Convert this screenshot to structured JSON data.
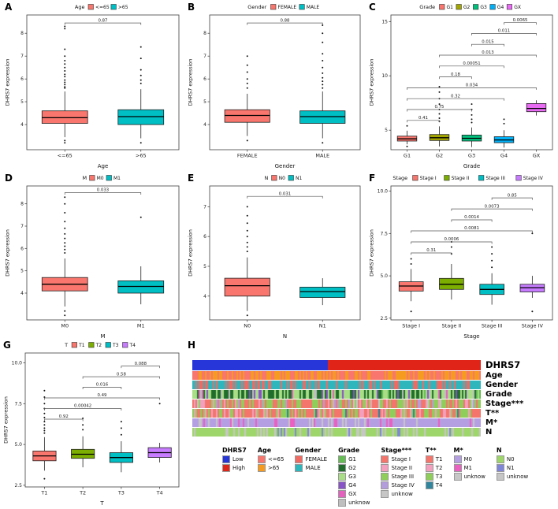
{
  "chart_data": [
    {
      "id": "A",
      "letter": "A",
      "type": "box",
      "legend_title": "Age",
      "xlab": "Age",
      "ylab": "DHRS7 expression",
      "ylim": [
        2.9,
        8.8
      ],
      "yticks": [
        4,
        5,
        6,
        7,
        8
      ],
      "groups": [
        {
          "label": "<=65",
          "color": "#F8766D",
          "q1": 4.05,
          "med": 4.3,
          "q3": 4.6,
          "lo": 3.45,
          "hi": 5.45,
          "outliers": [
            3.2,
            3.3,
            5.6,
            5.65,
            5.75,
            5.85,
            5.95,
            6.1,
            6.2,
            6.35,
            6.5,
            6.65,
            6.8,
            7.0,
            7.3,
            8.2,
            8.3
          ]
        },
        {
          "label": ">65",
          "color": "#00BFC4",
          "q1": 4.0,
          "med": 4.35,
          "q3": 4.65,
          "lo": 3.4,
          "hi": 5.55,
          "outliers": [
            3.2,
            5.8,
            5.95,
            6.15,
            6.4,
            6.9,
            7.4
          ]
        }
      ],
      "brackets": [
        {
          "a": 0,
          "b": 1,
          "p": "0.87",
          "y": 8.45
        }
      ]
    },
    {
      "id": "B",
      "letter": "B",
      "type": "box",
      "legend_title": "Gender",
      "xlab": "Gender",
      "ylab": "DHRS7 expression",
      "ylim": [
        2.9,
        8.8
      ],
      "yticks": [
        4,
        5,
        6,
        7,
        8
      ],
      "groups": [
        {
          "label": "FEMALE",
          "color": "#F8766D",
          "q1": 4.1,
          "med": 4.4,
          "q3": 4.65,
          "lo": 3.5,
          "hi": 5.35,
          "outliers": [
            3.3,
            5.6,
            5.8,
            6.0,
            6.3,
            6.6,
            7.0
          ]
        },
        {
          "label": "MALE",
          "color": "#00BFC4",
          "q1": 4.05,
          "med": 4.35,
          "q3": 4.6,
          "lo": 3.4,
          "hi": 5.45,
          "outliers": [
            3.2,
            5.6,
            5.75,
            5.9,
            6.05,
            6.25,
            6.5,
            6.8,
            7.1,
            7.6,
            8.0,
            8.35
          ]
        }
      ],
      "brackets": [
        {
          "a": 0,
          "b": 1,
          "p": "0.88",
          "y": 8.45
        }
      ]
    },
    {
      "id": "C",
      "letter": "C",
      "type": "box",
      "legend_title": "Grade",
      "xlab": "Grade",
      "ylab": "DHRS7 expression",
      "ylim": [
        3.2,
        15.6
      ],
      "yticks": [
        5,
        10,
        15
      ],
      "groups": [
        {
          "label": "G1",
          "color": "#F8766D",
          "q1": 4.0,
          "med": 4.2,
          "q3": 4.45,
          "lo": 3.7,
          "hi": 4.95,
          "outliers": [
            3.5,
            5.4
          ]
        },
        {
          "label": "G2",
          "color": "#A3A500",
          "q1": 4.05,
          "med": 4.3,
          "q3": 4.6,
          "lo": 3.5,
          "hi": 5.35,
          "outliers": [
            5.8,
            6.1,
            6.5,
            6.9,
            7.4,
            7.9,
            8.5,
            9.0
          ]
        },
        {
          "label": "G3",
          "color": "#00BF7D",
          "q1": 4.0,
          "med": 4.25,
          "q3": 4.55,
          "lo": 3.45,
          "hi": 5.25,
          "outliers": [
            5.7,
            6.0,
            6.4,
            6.9,
            7.4
          ]
        },
        {
          "label": "G4",
          "color": "#00B0F6",
          "q1": 3.85,
          "med": 4.1,
          "q3": 4.4,
          "lo": 3.4,
          "hi": 5.0,
          "outliers": [
            5.6,
            6.0
          ]
        },
        {
          "label": "GX",
          "color": "#E76BF3",
          "q1": 6.7,
          "med": 7.0,
          "q3": 7.45,
          "lo": 6.35,
          "hi": 7.75,
          "outliers": []
        }
      ],
      "brackets": [
        {
          "a": 0,
          "b": 1,
          "p": "0.41",
          "y": 5.9
        },
        {
          "a": 0,
          "b": 2,
          "p": "0.75",
          "y": 6.9
        },
        {
          "a": 0,
          "b": 3,
          "p": "0.32",
          "y": 7.9
        },
        {
          "a": 0,
          "b": 4,
          "p": "0.034",
          "y": 8.9
        },
        {
          "a": 1,
          "b": 2,
          "p": "0.18",
          "y": 9.9
        },
        {
          "a": 1,
          "b": 3,
          "p": "0.00051",
          "y": 10.9
        },
        {
          "a": 1,
          "b": 4,
          "p": "0.013",
          "y": 11.9
        },
        {
          "a": 2,
          "b": 3,
          "p": "0.015",
          "y": 12.9
        },
        {
          "a": 2,
          "b": 4,
          "p": "0.011",
          "y": 13.9
        },
        {
          "a": 3,
          "b": 4,
          "p": "0.0065",
          "y": 14.9
        }
      ]
    },
    {
      "id": "D",
      "letter": "D",
      "type": "box",
      "legend_title": "M",
      "xlab": "M",
      "ylab": "DHRS7 expression",
      "ylim": [
        2.8,
        8.8
      ],
      "yticks": [
        4,
        5,
        6,
        7,
        8
      ],
      "groups": [
        {
          "label": "M0",
          "color": "#F8766D",
          "q1": 4.1,
          "med": 4.4,
          "q3": 4.7,
          "lo": 3.4,
          "hi": 5.55,
          "outliers": [
            3.0,
            3.2,
            5.8,
            5.95,
            6.1,
            6.25,
            6.45,
            6.65,
            6.9,
            7.2,
            7.6,
            8.0,
            8.3
          ]
        },
        {
          "label": "M1",
          "color": "#00BFC4",
          "q1": 4.0,
          "med": 4.3,
          "q3": 4.55,
          "lo": 3.5,
          "hi": 5.2,
          "outliers": [
            7.4
          ]
        }
      ],
      "brackets": [
        {
          "a": 0,
          "b": 1,
          "p": "0.033",
          "y": 8.5
        }
      ]
    },
    {
      "id": "E",
      "letter": "E",
      "type": "box",
      "legend_title": "N",
      "xlab": "N",
      "ylab": "DHRS7 expression",
      "ylim": [
        3.2,
        7.7
      ],
      "yticks": [
        4,
        5,
        6,
        7
      ],
      "groups": [
        {
          "label": "N0",
          "color": "#F8766D",
          "q1": 4.0,
          "med": 4.35,
          "q3": 4.6,
          "lo": 3.5,
          "hi": 5.3,
          "outliers": [
            3.35,
            5.5,
            5.65,
            5.8,
            6.0,
            6.2,
            6.45,
            6.7,
            7.0
          ]
        },
        {
          "label": "N1",
          "color": "#00BFC4",
          "q1": 3.95,
          "med": 4.15,
          "q3": 4.3,
          "lo": 3.7,
          "hi": 4.6,
          "outliers": []
        }
      ],
      "brackets": [
        {
          "a": 0,
          "b": 1,
          "p": "0.031",
          "y": 7.35
        }
      ]
    },
    {
      "id": "F",
      "letter": "F",
      "type": "box",
      "legend_title": "Stage",
      "xlab": "Stage",
      "ylab": "DHRS7 expression",
      "ylim": [
        2.4,
        10.3
      ],
      "yticks": [
        2.5,
        5,
        7.5,
        10
      ],
      "ytick_labels": [
        "2.5",
        "5.0",
        "7.5",
        "10.0"
      ],
      "groups": [
        {
          "label": "Stage I",
          "color": "#F8766D",
          "q1": 4.1,
          "med": 4.4,
          "q3": 4.65,
          "lo": 3.5,
          "hi": 5.4,
          "outliers": [
            2.9,
            5.7,
            6.0
          ]
        },
        {
          "label": "Stage II",
          "color": "#7CAE00",
          "q1": 4.2,
          "med": 4.5,
          "q3": 4.85,
          "lo": 3.6,
          "hi": 5.7,
          "outliers": [
            6.3,
            6.7,
            7.0
          ]
        },
        {
          "label": "Stage III",
          "color": "#00BFC4",
          "q1": 3.9,
          "med": 4.2,
          "q3": 4.5,
          "lo": 3.3,
          "hi": 5.15,
          "outliers": [
            5.5,
            5.9,
            6.3,
            6.7
          ]
        },
        {
          "label": "Stage IV",
          "color": "#C77CFF",
          "q1": 4.05,
          "med": 4.3,
          "q3": 4.5,
          "lo": 3.7,
          "hi": 5.0,
          "outliers": [
            2.9,
            7.5
          ]
        }
      ],
      "brackets": [
        {
          "a": 0,
          "b": 1,
          "p": "0.31",
          "y": 6.35
        },
        {
          "a": 0,
          "b": 2,
          "p": "0.0006",
          "y": 7.0
        },
        {
          "a": 0,
          "b": 3,
          "p": "0.0081",
          "y": 7.65
        },
        {
          "a": 1,
          "b": 2,
          "p": "0.0014",
          "y": 8.3
        },
        {
          "a": 1,
          "b": 3,
          "p": "0.0073",
          "y": 8.95
        },
        {
          "a": 2,
          "b": 3,
          "p": "0.85",
          "y": 9.6
        }
      ]
    },
    {
      "id": "G",
      "letter": "G",
      "type": "box",
      "legend_title": "T",
      "xlab": "T",
      "ylab": "DHRS7 expression",
      "ylim": [
        2.4,
        10.6
      ],
      "yticks": [
        2.5,
        5,
        7.5,
        10
      ],
      "ytick_labels": [
        "2.5",
        "5.0",
        "7.5",
        "10.0"
      ],
      "groups": [
        {
          "label": "T1",
          "color": "#F8766D",
          "q1": 4.0,
          "med": 4.3,
          "q3": 4.6,
          "lo": 3.4,
          "hi": 5.45,
          "outliers": [
            2.9,
            5.7,
            5.85,
            6.0,
            6.2,
            6.4,
            6.65,
            6.9,
            7.2,
            7.5,
            7.9,
            8.3
          ]
        },
        {
          "label": "T2",
          "color": "#7CAE00",
          "q1": 4.15,
          "med": 4.4,
          "q3": 4.7,
          "lo": 3.6,
          "hi": 5.5,
          "outliers": [
            5.9,
            6.2,
            6.6
          ]
        },
        {
          "label": "T3",
          "color": "#00BFC4",
          "q1": 3.9,
          "med": 4.2,
          "q3": 4.5,
          "lo": 3.3,
          "hi": 5.2,
          "outliers": [
            5.6,
            6.0,
            6.4
          ]
        },
        {
          "label": "T4",
          "color": "#C77CFF",
          "q1": 4.2,
          "med": 4.5,
          "q3": 4.8,
          "lo": 3.9,
          "hi": 5.1,
          "outliers": [
            7.5
          ]
        }
      ],
      "brackets": [
        {
          "a": 0,
          "b": 1,
          "p": "0.92",
          "y": 6.55
        },
        {
          "a": 0,
          "b": 2,
          "p": "0.00042",
          "y": 7.2
        },
        {
          "a": 0,
          "b": 3,
          "p": "0.49",
          "y": 7.85
        },
        {
          "a": 1,
          "b": 2,
          "p": "0.016",
          "y": 8.5
        },
        {
          "a": 1,
          "b": 3,
          "p": "0.58",
          "y": 9.15
        },
        {
          "a": 2,
          "b": 3,
          "p": "0.088",
          "y": 9.8
        }
      ]
    },
    {
      "id": "H",
      "letter": "H",
      "type": "heatmap",
      "rows": [
        {
          "label": "DHRS7",
          "mode": "split",
          "split": 0.47,
          "colors": [
            "#2636D9",
            "#E02418"
          ]
        },
        {
          "label": "Age",
          "mode": "random",
          "colors": [
            "#F8766D",
            "#F59B20"
          ],
          "probs": [
            0.58,
            0.42
          ]
        },
        {
          "label": "Gender",
          "mode": "random",
          "colors": [
            "#EF6A63",
            "#2FB6BD"
          ],
          "probs": [
            0.34,
            0.66
          ]
        },
        {
          "label": "Grade",
          "mode": "random",
          "colors": [
            "#63BD52",
            "#216E2C",
            "#A9DD86",
            "#8A52C9",
            "#E560BE",
            "#BFBFBF"
          ],
          "probs": [
            0.04,
            0.4,
            0.4,
            0.08,
            0.02,
            0.06
          ]
        },
        {
          "label": "Stage***",
          "mode": "random",
          "colors": [
            "#F3756C",
            "#F2A0BD",
            "#8FCE5A",
            "#B39DDB",
            "#C6C6C6"
          ],
          "probs": [
            0.5,
            0.11,
            0.24,
            0.12,
            0.03
          ]
        },
        {
          "label": "T**",
          "mode": "random",
          "colors": [
            "#F3756C",
            "#F2A0BD",
            "#8FCE5A",
            "#31859C"
          ],
          "probs": [
            0.5,
            0.13,
            0.33,
            0.04
          ]
        },
        {
          "label": "M*",
          "mode": "random",
          "colors": [
            "#B59FE3",
            "#EA5FC0",
            "#C6C6C6"
          ],
          "probs": [
            0.76,
            0.16,
            0.08
          ]
        },
        {
          "label": "N",
          "mode": "random",
          "colors": [
            "#9FD66B",
            "#7F86D8",
            "#C6C6C6"
          ],
          "probs": [
            0.66,
            0.06,
            0.28
          ]
        }
      ],
      "legends": [
        {
          "title": "DHRS7",
          "entries": [
            {
              "label": "Low",
              "color": "#2636D9"
            },
            {
              "label": "High",
              "color": "#E02418"
            }
          ]
        },
        {
          "title": "Age",
          "entries": [
            {
              "label": "<=65",
              "color": "#F8766D"
            },
            {
              "label": ">65",
              "color": "#F59B20"
            }
          ]
        },
        {
          "title": "Gender",
          "entries": [
            {
              "label": "FEMALE",
              "color": "#EF6A63"
            },
            {
              "label": "MALE",
              "color": "#2FB6BD"
            }
          ]
        },
        {
          "title": "Grade",
          "entries": [
            {
              "label": "G1",
              "color": "#63BD52"
            },
            {
              "label": "G2",
              "color": "#216E2C"
            },
            {
              "label": "G3",
              "color": "#A9DD86"
            },
            {
              "label": "G4",
              "color": "#8A52C9"
            },
            {
              "label": "GX",
              "color": "#E560BE"
            },
            {
              "label": "unknow",
              "color": "#BFBFBF"
            }
          ]
        },
        {
          "title": "Stage***",
          "entries": [
            {
              "label": "Stage I",
              "color": "#F3756C"
            },
            {
              "label": "Stage II",
              "color": "#F2A0BD"
            },
            {
              "label": "Stage III",
              "color": "#8FCE5A"
            },
            {
              "label": "Stage IV",
              "color": "#B39DDB"
            },
            {
              "label": "unknow",
              "color": "#C6C6C6"
            }
          ]
        },
        {
          "title": "T**",
          "entries": [
            {
              "label": "T1",
              "color": "#F3756C"
            },
            {
              "label": "T2",
              "color": "#F2A0BD"
            },
            {
              "label": "T3",
              "color": "#8FCE5A"
            },
            {
              "label": "T4",
              "color": "#31859C"
            }
          ]
        },
        {
          "title": "M*",
          "entries": [
            {
              "label": "M0",
              "color": "#B59FE3"
            },
            {
              "label": "M1",
              "color": "#EA5FC0"
            },
            {
              "label": "unknow",
              "color": "#C6C6C6"
            }
          ]
        },
        {
          "title": "N",
          "entries": [
            {
              "label": "N0",
              "color": "#9FD66B"
            },
            {
              "label": "N1",
              "color": "#7F86D8"
            },
            {
              "label": "unknow",
              "color": "#C6C6C6"
            }
          ]
        }
      ]
    }
  ]
}
